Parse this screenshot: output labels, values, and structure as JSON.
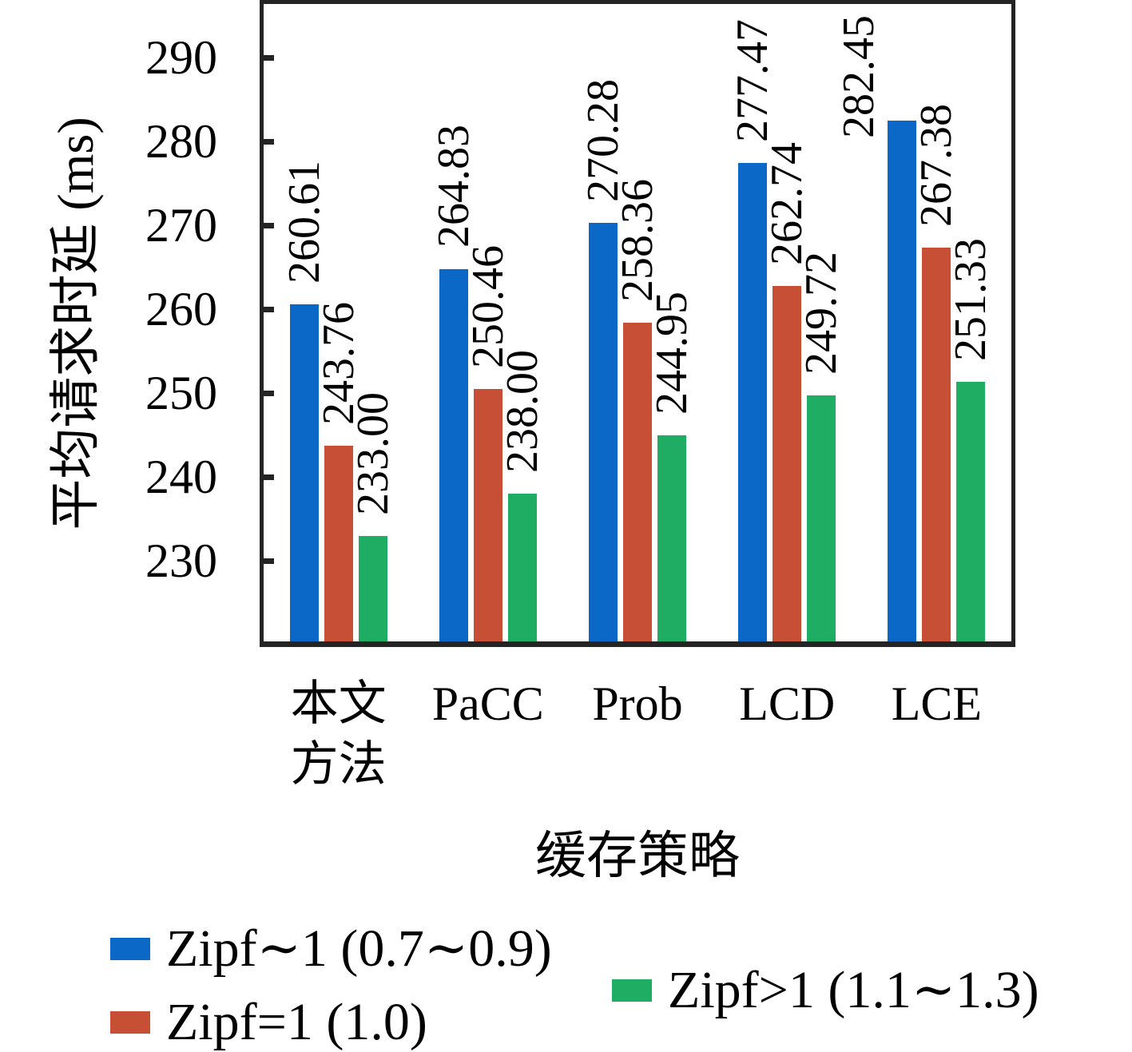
{
  "chart_data": {
    "type": "bar",
    "categories": [
      "本文\n方法",
      "PaCC",
      "Prob",
      "LCD",
      "LCE"
    ],
    "series": [
      {
        "name": "Zipf∼1 (0.7∼0.9)",
        "color": "#0B68C7",
        "values": [
          260.61,
          264.83,
          270.28,
          277.47,
          282.45
        ]
      },
      {
        "name": "Zipf=1 (1.0)",
        "color": "#C74F36",
        "values": [
          243.76,
          250.46,
          258.36,
          262.74,
          267.38
        ]
      },
      {
        "name": "Zipf>1 (1.1∼1.3)",
        "color": "#1FAD64",
        "values": [
          233.0,
          238.0,
          244.95,
          249.72,
          251.33
        ]
      }
    ],
    "value_labels_decimals": 2,
    "xlabel": "缓存策略",
    "ylabel": "平均请求时延 (ms)",
    "yticks": [
      230,
      240,
      250,
      260,
      270,
      280,
      290
    ],
    "ylim": [
      220.4,
      296.4
    ],
    "grid": false,
    "frame_color": "#242424",
    "legend_position": "bottom"
  }
}
